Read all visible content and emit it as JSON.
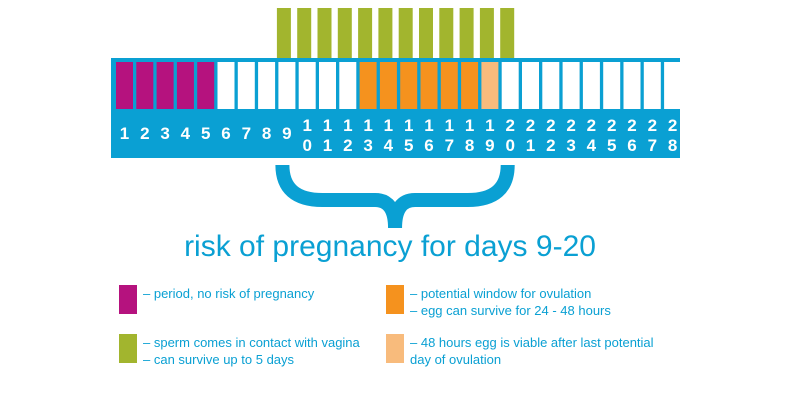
{
  "colors": {
    "blue": "#0aa0d3",
    "period": "#b5127e",
    "sperm": "#a2b52e",
    "ovulation": "#f5921e",
    "viable": "#f8bb7c",
    "white": "#ffffff"
  },
  "days": [
    {
      "top": "1",
      "bottom": ""
    },
    {
      "top": "2",
      "bottom": ""
    },
    {
      "top": "3",
      "bottom": ""
    },
    {
      "top": "4",
      "bottom": ""
    },
    {
      "top": "5",
      "bottom": ""
    },
    {
      "top": "6",
      "bottom": ""
    },
    {
      "top": "7",
      "bottom": ""
    },
    {
      "top": "8",
      "bottom": ""
    },
    {
      "top": "9",
      "bottom": ""
    },
    {
      "top": "1",
      "bottom": "0"
    },
    {
      "top": "1",
      "bottom": "1"
    },
    {
      "top": "1",
      "bottom": "2"
    },
    {
      "top": "1",
      "bottom": "3"
    },
    {
      "top": "1",
      "bottom": "4"
    },
    {
      "top": "1",
      "bottom": "5"
    },
    {
      "top": "1",
      "bottom": "6"
    },
    {
      "top": "1",
      "bottom": "7"
    },
    {
      "top": "1",
      "bottom": "8"
    },
    {
      "top": "1",
      "bottom": "9"
    },
    {
      "top": "2",
      "bottom": "0"
    },
    {
      "top": "2",
      "bottom": "1"
    },
    {
      "top": "2",
      "bottom": "2"
    },
    {
      "top": "2",
      "bottom": "3"
    },
    {
      "top": "2",
      "bottom": "4"
    },
    {
      "top": "2",
      "bottom": "5"
    },
    {
      "top": "2",
      "bottom": "6"
    },
    {
      "top": "2",
      "bottom": "7"
    },
    {
      "top": "2",
      "bottom": "8"
    }
  ],
  "period_days": [
    1,
    2,
    3,
    4,
    5
  ],
  "ovulation_days": [
    13,
    14,
    15,
    16,
    17,
    18
  ],
  "viable_days": [
    19
  ],
  "sperm_days": [
    9,
    10,
    11,
    12,
    13,
    14,
    15,
    16,
    17,
    18,
    19,
    20
  ],
  "risk_range": [
    9,
    20
  ],
  "title": "risk of pregnancy for days 9-20",
  "legend": [
    {
      "key": "period",
      "lines": [
        "– period, no risk of pregnancy"
      ]
    },
    {
      "key": "ovulation",
      "lines": [
        "– potential window for ovulation",
        "– egg can survive for 24 - 48 hours"
      ]
    },
    {
      "key": "sperm",
      "lines": [
        "– sperm comes in contact with vagina",
        "– can survive up to 5 days"
      ]
    },
    {
      "key": "viable",
      "lines": [
        "– 48 hours egg is viable after last potential",
        "day of ovulation"
      ]
    }
  ]
}
